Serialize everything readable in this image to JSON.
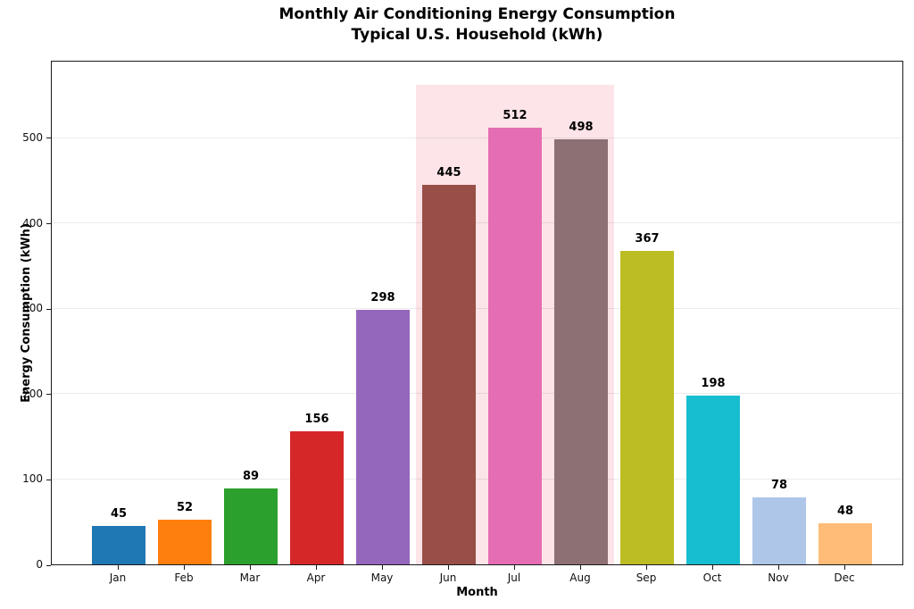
{
  "title": {
    "line1": "Monthly Air Conditioning Energy Consumption",
    "line2": "Typical U.S. Household (kWh)"
  },
  "chart_data": {
    "type": "bar",
    "title": "Monthly Air Conditioning Energy Consumption\nTypical U.S. Household (kWh)",
    "xlabel": "Month",
    "ylabel": "Energy Consumption (kWh)",
    "categories": [
      "Jan",
      "Feb",
      "Mar",
      "Apr",
      "May",
      "Jun",
      "Jul",
      "Aug",
      "Sep",
      "Oct",
      "Nov",
      "Dec"
    ],
    "values": [
      45,
      52,
      89,
      156,
      298,
      445,
      512,
      498,
      367,
      198,
      78,
      48
    ],
    "bar_colors": [
      "#1f77b4",
      "#ff7f0e",
      "#2ca02c",
      "#d62728",
      "#9467bd",
      "#9a4e48",
      "#e56db3",
      "#8d7073",
      "#bcbd22",
      "#17becf",
      "#aec7e8",
      "#ffbb78"
    ],
    "value_labels_shown": true,
    "ylim": [
      0,
      591
    ],
    "yticks": [
      0,
      100,
      200,
      300,
      400,
      500
    ],
    "grid": "horizontal",
    "gridline_color": "#ececec",
    "legend": "none",
    "highlight_span": {
      "start_index": 5,
      "end_index": 7,
      "covers_categories": [
        "Jun",
        "Jul",
        "Aug"
      ],
      "top_value": 562,
      "color": "#fce4e8"
    },
    "frame_color": "#1a1a1a"
  }
}
